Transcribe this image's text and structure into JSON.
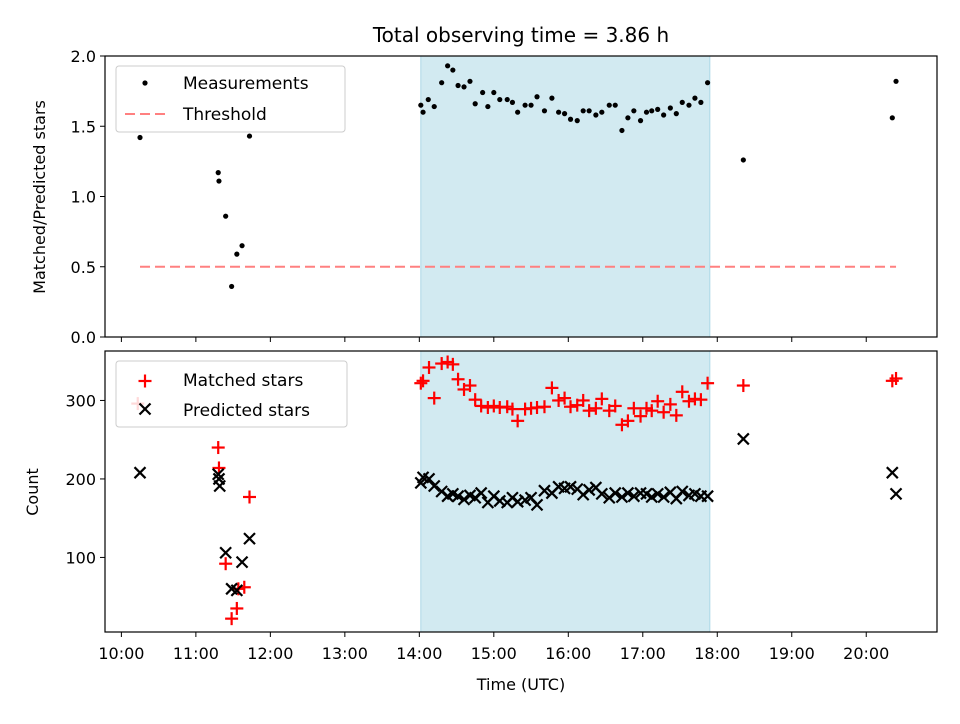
{
  "title": "Total observing time = 3.86 h",
  "colors": {
    "highlight": "#add8e6",
    "threshold": "#ff8080",
    "matched": "#ff0000",
    "predicted": "#000000",
    "measurement": "#000000"
  },
  "chart_data": [
    {
      "type": "scatter",
      "ylabel": "Matched/Predicted stars",
      "xlim": [
        9.78,
        20.95
      ],
      "ylim": [
        0.0,
        2.0
      ],
      "yticks": [
        "0.0",
        "0.5",
        "1.0",
        "1.5",
        "2.0"
      ],
      "highlight_span": [
        14.02,
        17.9
      ],
      "legend": {
        "placement": "top-left",
        "entries": [
          "Measurements",
          "Threshold"
        ]
      },
      "threshold": {
        "name": "Threshold",
        "x": [
          10.25,
          20.4
        ],
        "y": 0.5
      },
      "series": [
        {
          "name": "Measurements",
          "x": [
            10.25,
            11.3,
            11.31,
            11.4,
            11.48,
            11.55,
            11.62,
            11.72,
            14.02,
            14.05,
            14.12,
            14.2,
            14.3,
            14.38,
            14.45,
            14.52,
            14.6,
            14.68,
            14.75,
            14.85,
            14.92,
            15.0,
            15.08,
            15.18,
            15.25,
            15.32,
            15.42,
            15.5,
            15.58,
            15.68,
            15.78,
            15.87,
            15.95,
            16.03,
            16.12,
            16.2,
            16.28,
            16.37,
            16.45,
            16.55,
            16.63,
            16.72,
            16.8,
            16.88,
            16.97,
            17.05,
            17.12,
            17.2,
            17.28,
            17.37,
            17.45,
            17.53,
            17.62,
            17.7,
            17.78,
            17.87,
            18.35,
            20.35,
            20.4
          ],
          "y": [
            1.42,
            1.17,
            1.11,
            0.86,
            0.36,
            0.59,
            0.65,
            1.43,
            1.65,
            1.6,
            1.69,
            1.64,
            1.81,
            1.93,
            1.9,
            1.79,
            1.78,
            1.82,
            1.66,
            1.74,
            1.64,
            1.74,
            1.69,
            1.69,
            1.67,
            1.6,
            1.65,
            1.65,
            1.71,
            1.61,
            1.7,
            1.6,
            1.59,
            1.55,
            1.54,
            1.61,
            1.61,
            1.58,
            1.6,
            1.65,
            1.65,
            1.47,
            1.56,
            1.61,
            1.54,
            1.6,
            1.61,
            1.62,
            1.58,
            1.63,
            1.59,
            1.67,
            1.65,
            1.7,
            1.67,
            1.81,
            1.26,
            1.56,
            1.82
          ]
        }
      ]
    },
    {
      "type": "scatter",
      "xlabel": "Time (UTC)",
      "ylabel": "Count",
      "xlim": [
        9.78,
        20.95
      ],
      "ylim": [
        5,
        363
      ],
      "yticks": [
        "100",
        "200",
        "300"
      ],
      "xticks": [
        "10:00",
        "11:00",
        "12:00",
        "13:00",
        "14:00",
        "15:00",
        "16:00",
        "17:00",
        "18:00",
        "19:00",
        "20:00"
      ],
      "highlight_span": [
        14.02,
        17.9
      ],
      "legend": {
        "placement": "top-left",
        "entries": [
          "Matched stars",
          "Predicted stars"
        ]
      },
      "series": [
        {
          "name": "Matched stars",
          "x": [
            10.22,
            11.3,
            11.31,
            11.4,
            11.48,
            11.55,
            11.57,
            11.65,
            11.72,
            14.02,
            14.05,
            14.13,
            14.2,
            14.3,
            14.38,
            14.45,
            14.52,
            14.6,
            14.68,
            14.75,
            14.83,
            14.92,
            15.0,
            15.08,
            15.18,
            15.25,
            15.32,
            15.42,
            15.5,
            15.58,
            15.68,
            15.78,
            15.87,
            15.95,
            16.03,
            16.12,
            16.2,
            16.28,
            16.37,
            16.45,
            16.55,
            16.63,
            16.72,
            16.8,
            16.88,
            16.97,
            17.05,
            17.12,
            17.2,
            17.28,
            17.37,
            17.45,
            17.53,
            17.62,
            17.7,
            17.78,
            17.87,
            18.35,
            20.35,
            20.4
          ],
          "y": [
            296,
            240,
            214,
            92,
            22,
            35,
            60,
            62,
            177,
            322,
            325,
            342,
            303,
            347,
            349,
            346,
            327,
            314,
            319,
            301,
            293,
            291,
            293,
            291,
            292,
            289,
            274,
            289,
            290,
            291,
            292,
            316,
            300,
            303,
            292,
            294,
            300,
            287,
            290,
            302,
            287,
            293,
            269,
            274,
            290,
            280,
            290,
            287,
            299,
            285,
            295,
            281,
            311,
            299,
            302,
            301,
            322,
            319,
            325,
            328
          ]
        },
        {
          "name": "Predicted stars",
          "x": [
            10.25,
            11.3,
            11.31,
            11.32,
            11.4,
            11.48,
            11.55,
            11.62,
            11.72,
            14.02,
            14.05,
            14.13,
            14.2,
            14.3,
            14.38,
            14.45,
            14.52,
            14.6,
            14.68,
            14.75,
            14.83,
            14.92,
            15.0,
            15.08,
            15.18,
            15.25,
            15.32,
            15.42,
            15.5,
            15.58,
            15.68,
            15.78,
            15.87,
            15.95,
            16.03,
            16.12,
            16.2,
            16.28,
            16.37,
            16.45,
            16.55,
            16.63,
            16.72,
            16.8,
            16.88,
            16.97,
            17.05,
            17.12,
            17.2,
            17.28,
            17.37,
            17.45,
            17.53,
            17.62,
            17.7,
            17.78,
            17.87,
            18.35,
            20.35,
            20.4
          ],
          "y": [
            208,
            206,
            200,
            191,
            106,
            60,
            58,
            94,
            124,
            195,
            202,
            200,
            191,
            184,
            178,
            181,
            178,
            174,
            179,
            176,
            182,
            170,
            178,
            172,
            170,
            176,
            171,
            173,
            176,
            167,
            185,
            182,
            190,
            188,
            190,
            187,
            180,
            186,
            189,
            181,
            176,
            182,
            177,
            182,
            178,
            182,
            181,
            177,
            181,
            177,
            183,
            175,
            184,
            179,
            181,
            178,
            178,
            251,
            208,
            181
          ]
        }
      ]
    }
  ]
}
